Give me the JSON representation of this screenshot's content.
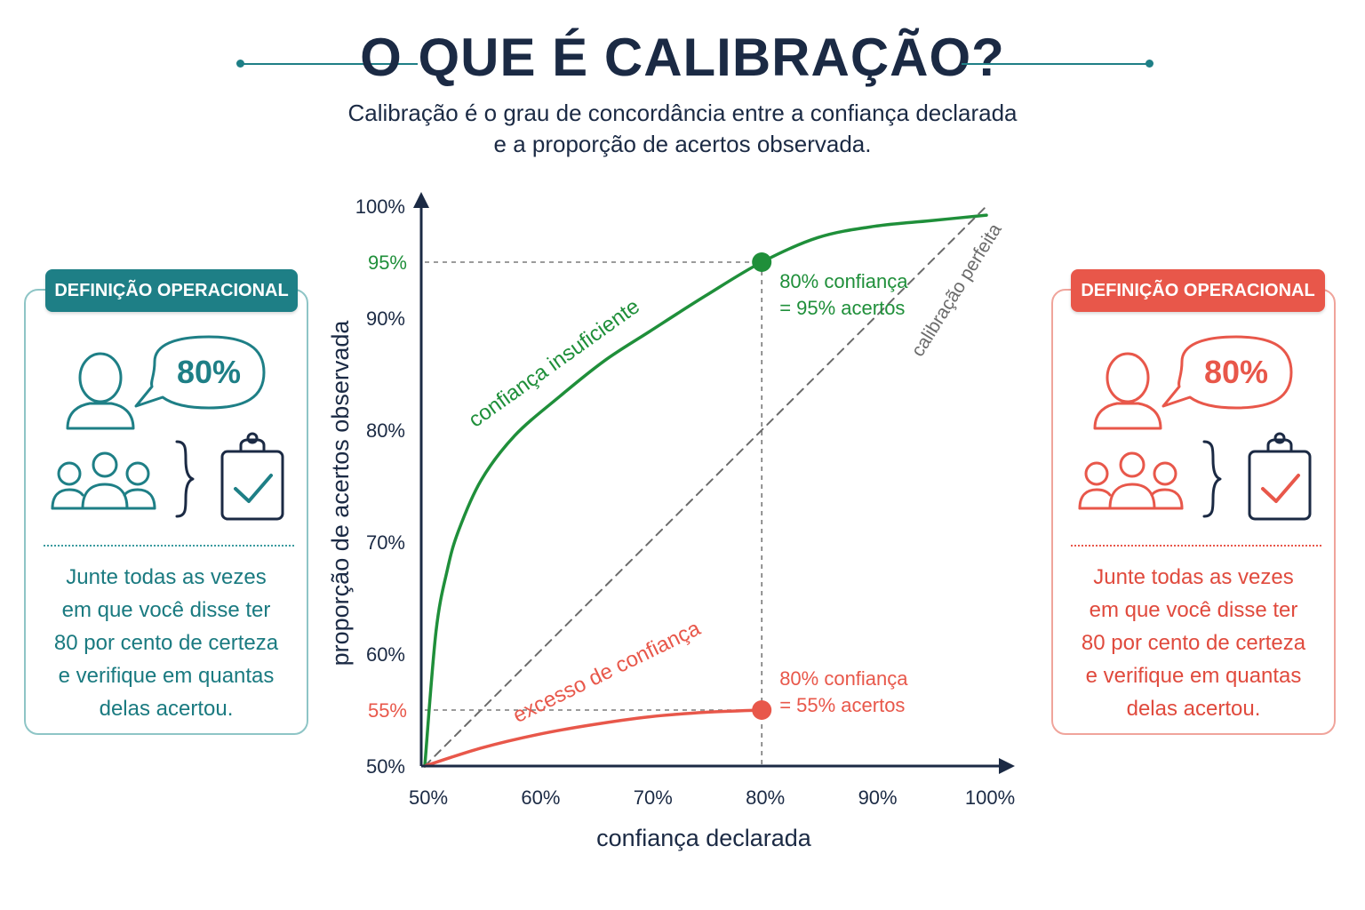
{
  "header": {
    "title": "O QUE É CALIBRAÇÃO?",
    "subtitle_line1": "Calibração é o grau de concordância entre a confiança declarada",
    "subtitle_line2": "e a proporção de acertos observada."
  },
  "colors": {
    "teal": "#1e7f86",
    "red": "#e8574a",
    "green": "#1f8f3a",
    "navy": "#1b2a44",
    "gray": "#6b6b6b"
  },
  "cards": {
    "left": {
      "badge": "DEFINIÇÃO OPERACIONAL",
      "bubble": "80%",
      "lines": [
        "Junte todas as vezes",
        "em que você disse ter",
        "80 por cento de certeza",
        "e verifique em quantas",
        "delas acertou."
      ],
      "icons": [
        "person-icon",
        "speech-bubble-icon",
        "group-icon",
        "brace-icon",
        "clipboard-check-icon"
      ]
    },
    "right": {
      "badge": "DEFINIÇÃO OPERACIONAL",
      "bubble": "80%",
      "lines": [
        "Junte todas as vezes",
        "em que você disse ter",
        "80 por cento de certeza",
        "e verifique em quantas",
        "delas acertou."
      ],
      "icons": [
        "person-icon",
        "speech-bubble-icon",
        "group-icon",
        "brace-icon",
        "clipboard-check-icon"
      ]
    }
  },
  "chart_data": {
    "type": "line",
    "xlabel": "confiança declarada",
    "ylabel": "proporção de acertos observada",
    "xlim": [
      50,
      100
    ],
    "ylim": [
      50,
      100
    ],
    "x_ticks": [
      "50%",
      "60%",
      "70%",
      "80%",
      "90%",
      "100%"
    ],
    "y_ticks": [
      "50%",
      "60%",
      "70%",
      "80%",
      "90%",
      "100%"
    ],
    "highlight_y_ticks": [
      {
        "label": "95%",
        "value": 95,
        "color": "#1f8f3a"
      },
      {
        "label": "55%",
        "value": 55,
        "color": "#e8574a"
      }
    ],
    "series": [
      {
        "name": "confiança insuficiente",
        "color": "#1f8f3a",
        "x": [
          50,
          51,
          52,
          53,
          55,
          58,
          62,
          66,
          70,
          75,
          80,
          85,
          90,
          95,
          100
        ],
        "y": [
          50,
          62,
          67.5,
          71,
          75.5,
          79.5,
          83,
          86.2,
          88.8,
          92,
          95,
          97.2,
          98.2,
          98.7,
          99.2
        ]
      },
      {
        "name": "calibração perfeita",
        "color": "#6b6b6b",
        "dashed": true,
        "x": [
          50,
          100
        ],
        "y": [
          50,
          100
        ]
      },
      {
        "name": "excesso de confiança",
        "color": "#e8574a",
        "x": [
          50,
          55,
          60,
          65,
          70,
          75,
          80
        ],
        "y": [
          50,
          51.6,
          52.8,
          53.7,
          54.4,
          54.8,
          55
        ]
      }
    ],
    "highlight_points": [
      {
        "x": 80,
        "y": 95,
        "color": "#1f8f3a",
        "line1": "80% confiança",
        "line2": "= 95% acertos"
      },
      {
        "x": 80,
        "y": 55,
        "color": "#e8574a",
        "line1": "80% confiança",
        "line2": "= 55% acertos"
      }
    ]
  }
}
